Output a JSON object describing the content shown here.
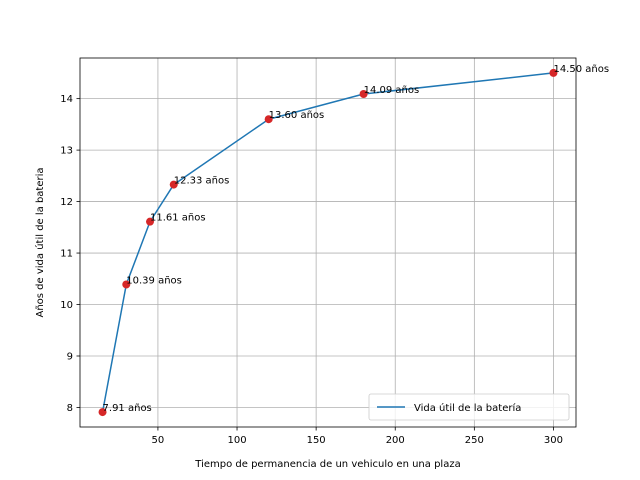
{
  "chart_data": {
    "type": "line",
    "title": "",
    "xlabel": "Tiempo de permanencia de un vehiculo en una plaza",
    "ylabel": "Años de vida útil de la bateria",
    "xlim": [
      0.75,
      314.25
    ],
    "ylim": [
      7.6205,
      14.7895
    ],
    "xticks": [
      50,
      100,
      150,
      200,
      250,
      300
    ],
    "yticks": [
      8,
      9,
      10,
      11,
      12,
      13,
      14
    ],
    "xtick_labels": [
      "50",
      "100",
      "150",
      "200",
      "250",
      "300"
    ],
    "ytick_labels": [
      "8",
      "9",
      "10",
      "11",
      "12",
      "13",
      "14"
    ],
    "grid": true,
    "legend_position": "lower-right",
    "series": [
      {
        "name": "Vida útil de la batería",
        "color": "#1f77b4",
        "marker_color": "#d62728",
        "x": [
          15,
          30,
          45,
          60,
          120,
          180,
          300
        ],
        "y": [
          7.91,
          10.39,
          11.61,
          12.33,
          13.6,
          14.09,
          14.5
        ],
        "labels": [
          "7.91 años",
          "10.39 años",
          "11.61 años",
          "12.33 años",
          "13.60 años",
          "14.09 años",
          "14.50 años"
        ]
      }
    ]
  }
}
